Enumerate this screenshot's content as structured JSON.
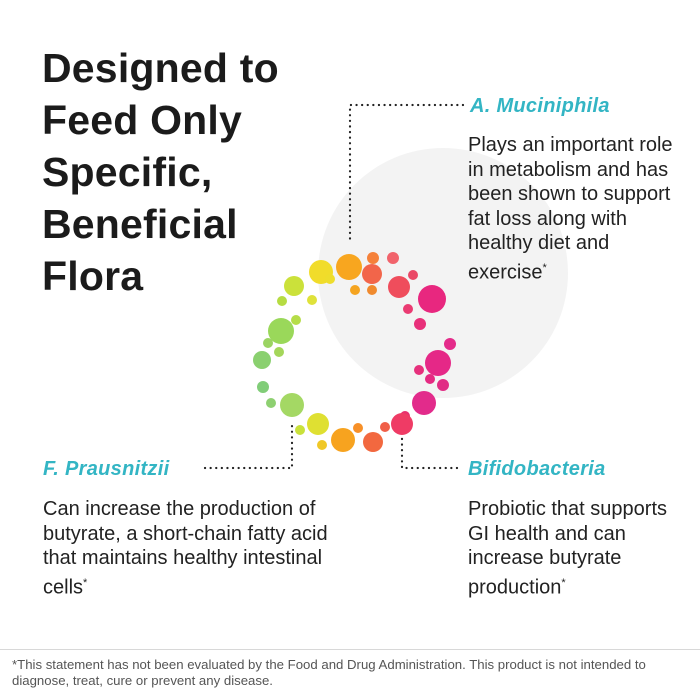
{
  "headline": "Designed to Feed Only Specific, Beneficial Flora",
  "callouts": [
    {
      "name": "A. Muciniphila",
      "description": "Plays an important role in metabolism and has been shown to support fat loss along with healthy diet and exercise",
      "footnote_mark": "*"
    },
    {
      "name": "F. Prausnitzii",
      "description": "Can increase the production of butyrate, a short-chain fatty acid that maintains healthy intestinal cells",
      "footnote_mark": "*"
    },
    {
      "name": "Bifidobacteria",
      "description": "Probiotic that supports GI health and can increase butyrate production",
      "footnote_mark": "*"
    }
  ],
  "disclaimer": "*This statement has not been evaluated by the Food and Drug Administration. This product is not intended to diagnose, treat, cure or prevent any disease.",
  "colors": {
    "accent": "#33b5c4",
    "heading": "#1b1b1b",
    "text": "#222222",
    "background_circle": "#f3f3f3",
    "ring_gradient": [
      "#f7d51e",
      "#f8a21e",
      "#f25a3c",
      "#e8267f",
      "#e42b8b",
      "#8fd26b",
      "#6fc79a"
    ]
  }
}
